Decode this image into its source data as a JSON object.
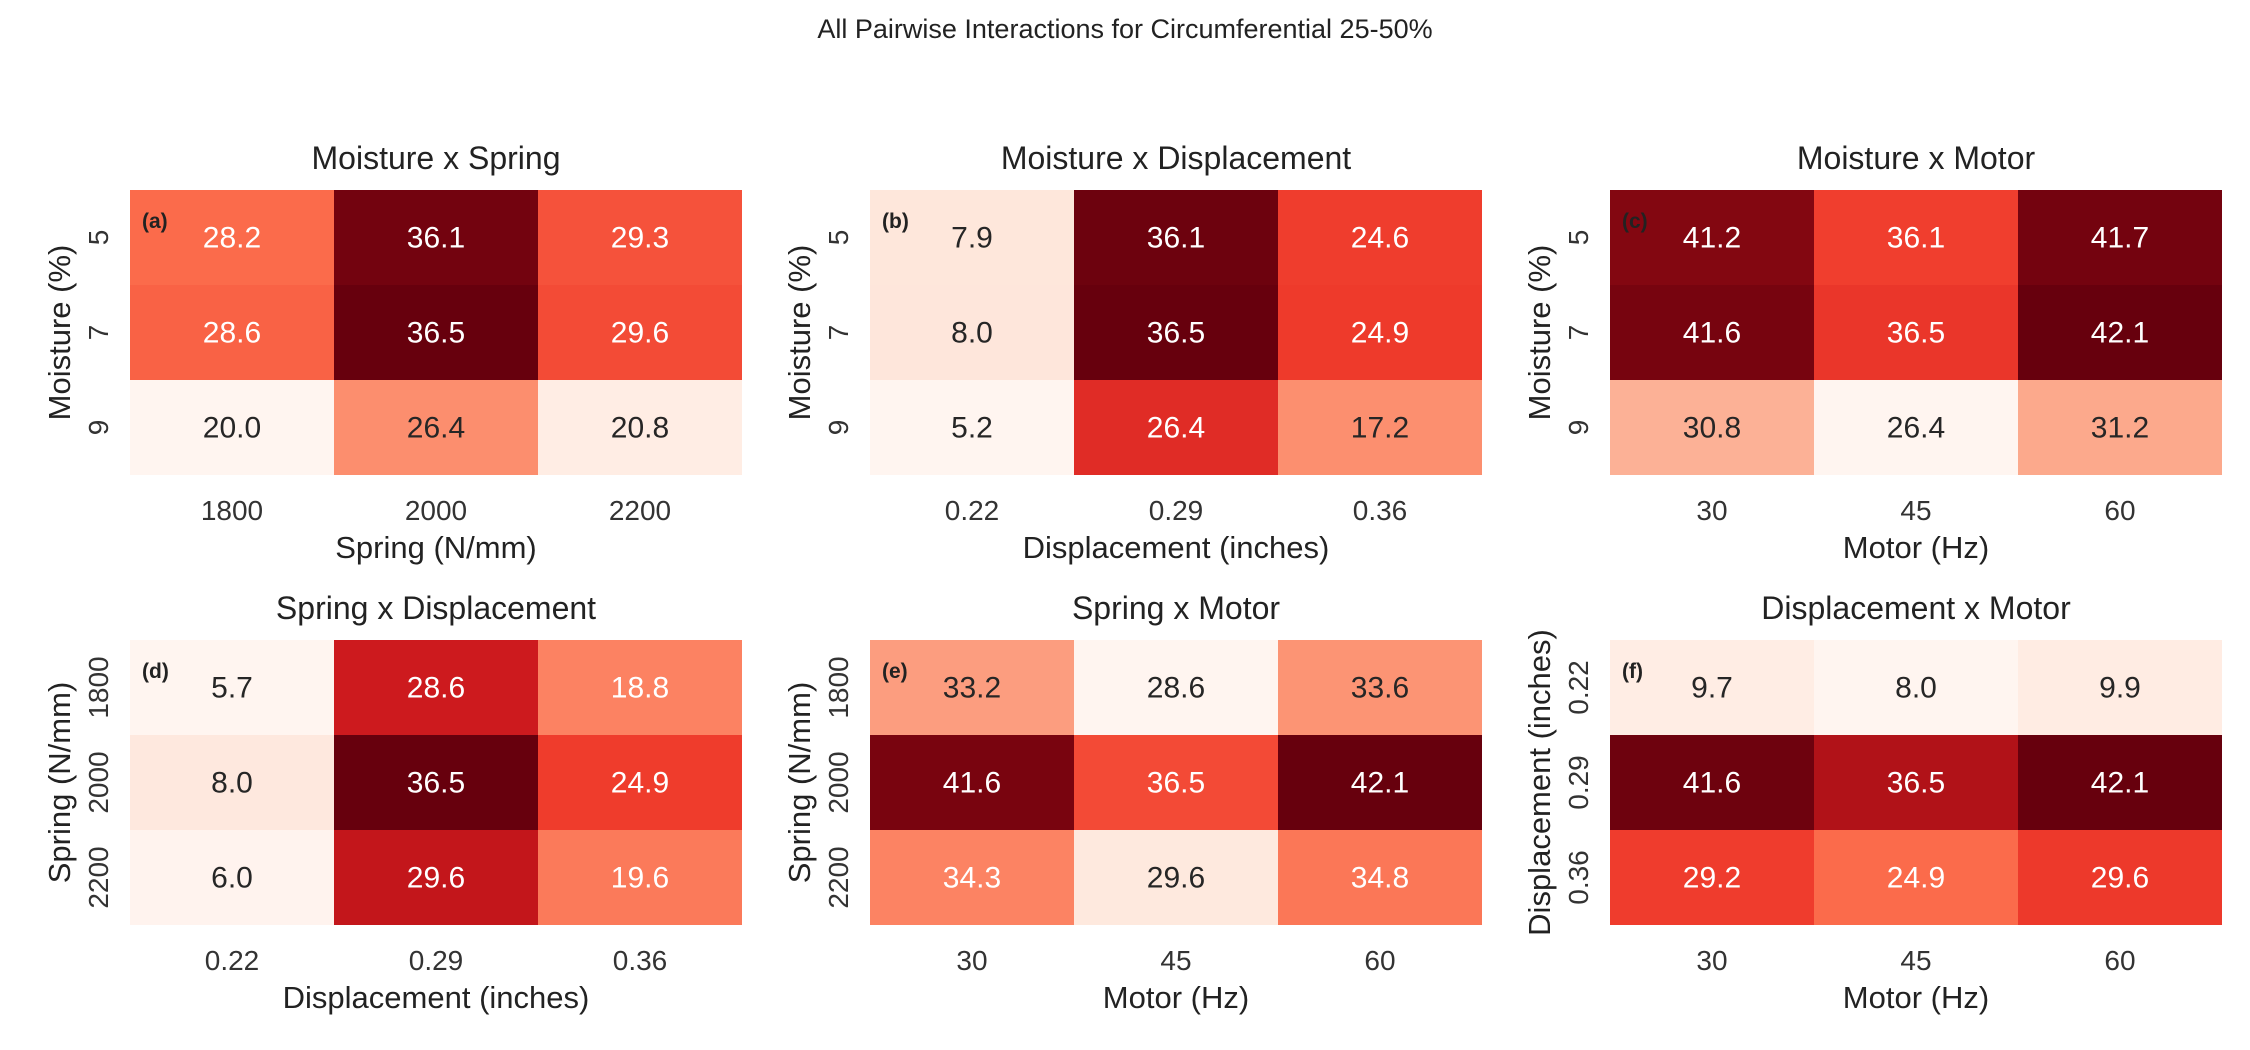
{
  "figure_title": "All Pairwise Interactions for Circumferential 25-50%",
  "chart_data": [
    {
      "type": "heatmap",
      "panel_label": "(a)",
      "title": "Moisture x Spring",
      "xlabel": "Spring (N/mm)",
      "ylabel": "Moisture (%)",
      "x": [
        "1800",
        "2000",
        "2200"
      ],
      "y": [
        "5",
        "7",
        "9"
      ],
      "values": [
        [
          28.2,
          36.1,
          29.3
        ],
        [
          28.6,
          36.5,
          29.6
        ],
        [
          20.0,
          26.4,
          20.8
        ]
      ],
      "colormap": "Reds"
    },
    {
      "type": "heatmap",
      "panel_label": "(b)",
      "title": "Moisture x Displacement",
      "xlabel": "Displacement (inches)",
      "ylabel": "Moisture (%)",
      "x": [
        "0.22",
        "0.29",
        "0.36"
      ],
      "y": [
        "5",
        "7",
        "9"
      ],
      "values": [
        [
          7.9,
          36.1,
          24.6
        ],
        [
          8.0,
          36.5,
          24.9
        ],
        [
          5.2,
          26.4,
          17.2
        ]
      ],
      "colormap": "Reds"
    },
    {
      "type": "heatmap",
      "panel_label": "(c)",
      "title": "Moisture x Motor",
      "xlabel": "Motor (Hz)",
      "ylabel": "Moisture (%)",
      "x": [
        "30",
        "45",
        "60"
      ],
      "y": [
        "5",
        "7",
        "9"
      ],
      "values": [
        [
          41.2,
          36.1,
          41.7
        ],
        [
          41.6,
          36.5,
          42.1
        ],
        [
          30.8,
          26.4,
          31.2
        ]
      ],
      "colormap": "Reds"
    },
    {
      "type": "heatmap",
      "panel_label": "(d)",
      "title": "Spring x Displacement",
      "xlabel": "Displacement (inches)",
      "ylabel": "Spring (N/mm)",
      "x": [
        "0.22",
        "0.29",
        "0.36"
      ],
      "y": [
        "1800",
        "2000",
        "2200"
      ],
      "values": [
        [
          5.7,
          28.6,
          18.8
        ],
        [
          8.0,
          36.5,
          24.9
        ],
        [
          6.0,
          29.6,
          19.6
        ]
      ],
      "colormap": "Reds"
    },
    {
      "type": "heatmap",
      "panel_label": "(e)",
      "title": "Spring x Motor",
      "xlabel": "Motor (Hz)",
      "ylabel": "Spring (N/mm)",
      "x": [
        "30",
        "45",
        "60"
      ],
      "y": [
        "1800",
        "2000",
        "2200"
      ],
      "values": [
        [
          33.2,
          28.6,
          33.6
        ],
        [
          41.6,
          36.5,
          42.1
        ],
        [
          34.3,
          29.6,
          34.8
        ]
      ],
      "colormap": "Reds"
    },
    {
      "type": "heatmap",
      "panel_label": "(f)",
      "title": "Displacement x Motor",
      "xlabel": "Motor (Hz)",
      "ylabel": "Displacement (inches)",
      "x": [
        "30",
        "45",
        "60"
      ],
      "y": [
        "0.22",
        "0.29",
        "0.36"
      ],
      "values": [
        [
          9.7,
          8.0,
          9.9
        ],
        [
          41.6,
          36.5,
          42.1
        ],
        [
          29.2,
          24.9,
          29.6
        ]
      ],
      "colormap": "Reds"
    }
  ]
}
